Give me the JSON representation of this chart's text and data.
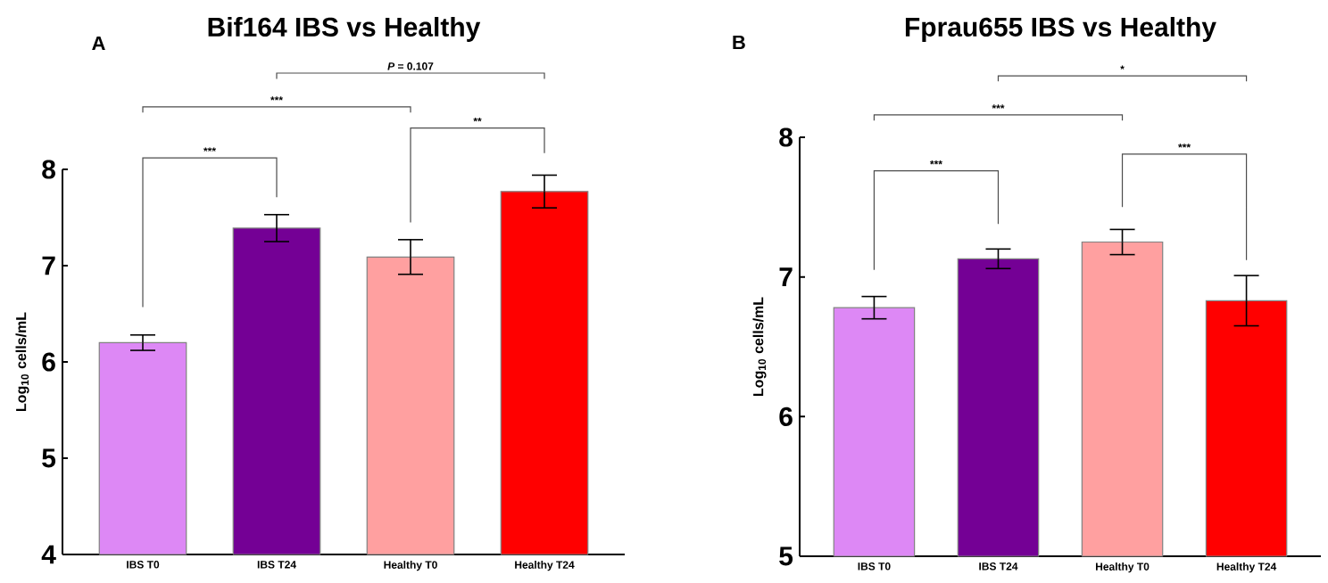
{
  "chart_data": [
    {
      "type": "bar",
      "title": "Bif164 IBS vs Healthy",
      "ylabel": "Log$_{10}$ cells/mL",
      "categories": [
        "IBS T0",
        "IBS T24",
        "Healthy T0",
        "Healthy T24"
      ],
      "values": [
        6.2,
        7.39,
        7.09,
        7.77
      ],
      "errors": [
        0.08,
        0.14,
        0.18,
        0.17
      ],
      "colors": [
        "#dd88f5",
        "#740095",
        "#ffa0a0",
        "#ff0000"
      ],
      "ylim": [
        4,
        8
      ],
      "yticks": [
        4,
        5,
        6,
        7,
        8
      ],
      "annotations": [
        "A",
        "***",
        "**",
        "***",
        "*P* = 0.107"
      ]
    },
    {
      "type": "bar",
      "title": "Fprau655 IBS vs Healthy",
      "ylabel": "Log$_{10}$ cells/mL",
      "categories": [
        "IBS T0",
        "IBS T24",
        "Healthy T0",
        "Healthy T24"
      ],
      "values": [
        6.78,
        7.13,
        7.25,
        6.83
      ],
      "errors": [
        0.08,
        0.07,
        0.09,
        0.18
      ],
      "colors": [
        "#dd88f5",
        "#740095",
        "#ffa0a0",
        "#ff0000"
      ],
      "ylim": [
        5,
        8
      ],
      "yticks": [
        5,
        6,
        7,
        8
      ],
      "annotations": [
        "B",
        "***",
        "***",
        "***",
        "*"
      ]
    }
  ]
}
